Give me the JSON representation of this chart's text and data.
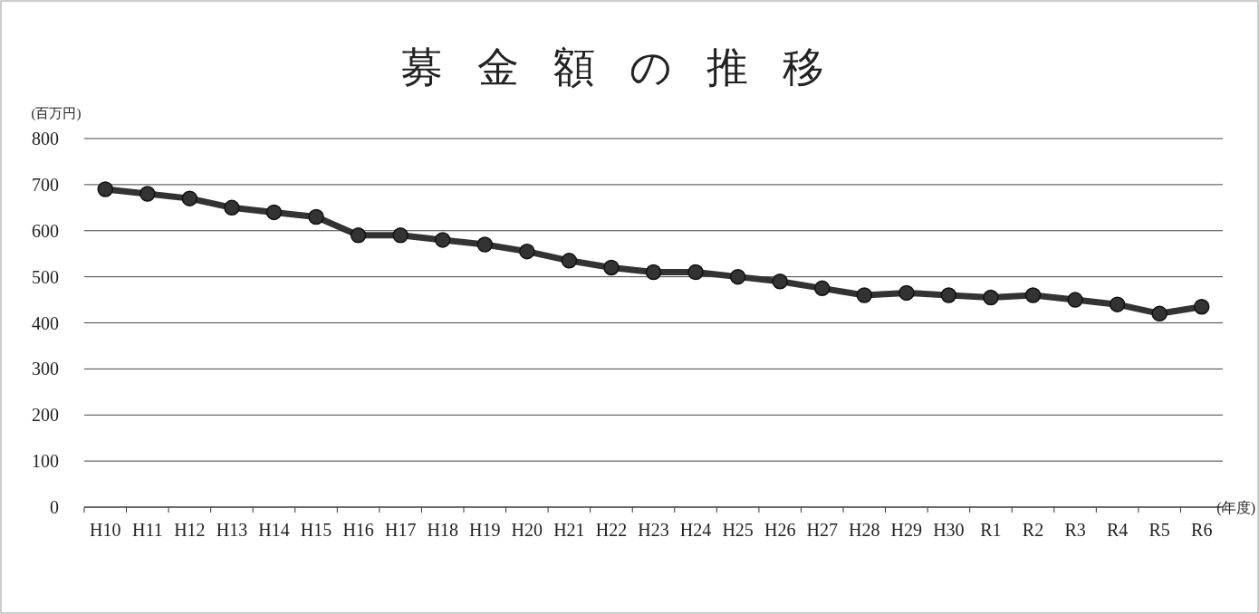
{
  "chart_data": {
    "type": "line",
    "title": "募金額の推移",
    "ylabel": "(百万円)",
    "xlabel": "(年度)",
    "categories": [
      "H10",
      "H11",
      "H12",
      "H13",
      "H14",
      "H15",
      "H16",
      "H17",
      "H18",
      "H19",
      "H20",
      "H21",
      "H22",
      "H23",
      "H24",
      "H25",
      "H26",
      "H27",
      "H28",
      "H29",
      "H30",
      "R1",
      "R2",
      "R3",
      "R4",
      "R5",
      "R6"
    ],
    "series": [
      {
        "color": "#333333",
        "values": [
          690,
          680,
          670,
          650,
          640,
          630,
          590,
          590,
          580,
          570,
          555,
          535,
          520,
          510,
          510,
          500,
          490,
          475,
          460,
          465,
          460,
          455,
          460,
          450,
          440,
          420,
          435
        ]
      }
    ],
    "ylim": [
      0,
      800
    ],
    "yticks": [
      0,
      100,
      200,
      300,
      400,
      500,
      600,
      700,
      800
    ],
    "grid": "y",
    "marker": "circle",
    "line_style": "solid"
  }
}
